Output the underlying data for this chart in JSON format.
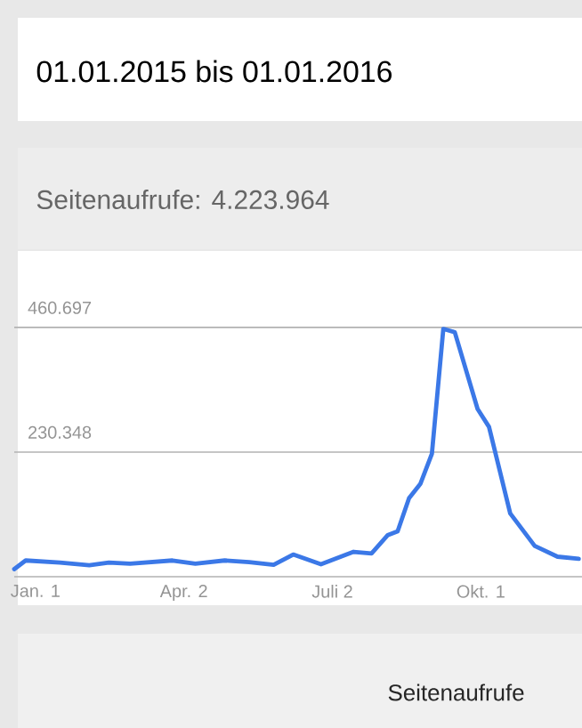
{
  "chart_data": {
    "type": "line",
    "title": "Seitenaufrufe: 4.223.964",
    "annotations": [
      "01.01.2015 bis 01.01.2016",
      "Seitenaufrufe"
    ],
    "x": [
      "2014-12-19",
      "2014-12-26",
      "2015-01-16",
      "2015-02-03",
      "2015-02-15",
      "2015-02-28",
      "2015-03-26",
      "2015-04-09",
      "2015-04-27",
      "2015-05-12",
      "2015-05-27",
      "2015-06-08",
      "2015-06-25",
      "2015-07-15",
      "2015-07-26",
      "2015-08-05",
      "2015-08-11",
      "2015-08-18",
      "2015-08-25",
      "2015-09-01",
      "2015-09-08",
      "2015-09-15",
      "2015-09-29",
      "2015-10-06",
      "2015-10-19",
      "2015-11-03",
      "2015-11-17",
      "2015-11-30"
    ],
    "series": [
      {
        "color": "#3b78e7",
        "values": [
          14000,
          30000,
          26000,
          21000,
          26000,
          24000,
          30000,
          24000,
          30000,
          27000,
          22000,
          41000,
          23000,
          46000,
          43000,
          77000,
          84000,
          145000,
          172000,
          227000,
          458000,
          452000,
          310000,
          277000,
          117000,
          57000,
          37000,
          33000
        ]
      }
    ],
    "xlim": [
      "2014-12-19",
      "2015-12-02"
    ],
    "xticks": [
      {
        "value": "2015-01-01",
        "label": "Jan. 1"
      },
      {
        "value": "2015-04-02",
        "label": "Apr. 2"
      },
      {
        "value": "2015-07-02",
        "label": "Juli 2"
      },
      {
        "value": "2015-10-01",
        "label": "Okt. 1"
      }
    ],
    "ylim": [
      0,
      602000
    ],
    "yticks": [
      {
        "value": 230348,
        "label": "230.348"
      },
      {
        "value": 460697,
        "label": "460.697"
      }
    ],
    "grid": "y",
    "marker": "none",
    "line_style": "solid"
  }
}
